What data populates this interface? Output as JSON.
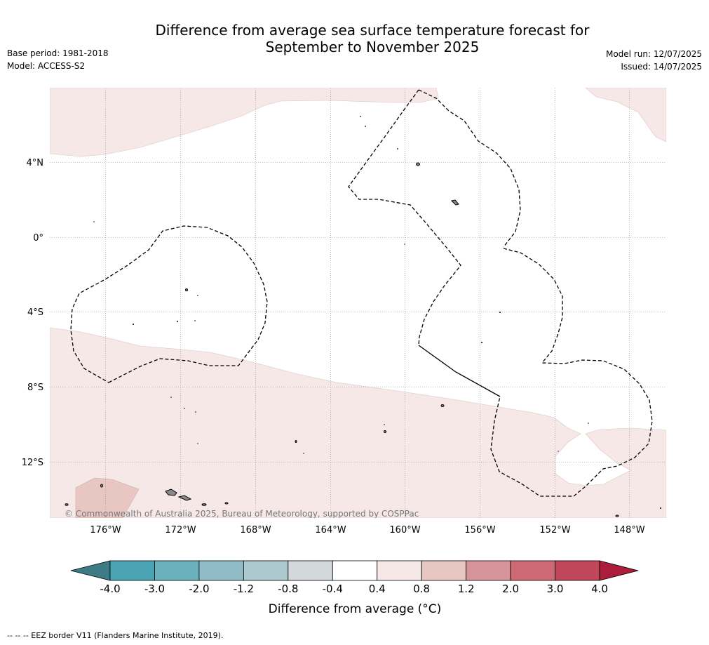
{
  "title_line1": "Difference from average sea surface temperature forecast for",
  "title_line2": "September to November 2025",
  "base_period": "Base period: 1981-2018",
  "model": "Model: ACCESS-S2",
  "model_run": "Model run: 12/07/2025",
  "issued": "Issued: 14/07/2025",
  "copyright": "© Commonwealth of Australia 2025, Bureau of Meteorology, supported by COSPPac",
  "lat_labels": [
    "4°N",
    "0°",
    "4°S",
    "8°S",
    "12°S"
  ],
  "lon_labels": [
    "176°W",
    "172°W",
    "168°W",
    "164°W",
    "160°W",
    "156°W",
    "152°W",
    "148°W"
  ],
  "colorbar": {
    "title": "Difference from average (°C)",
    "ticks": [
      "-4.0",
      "-3.0",
      "-2.0",
      "-1.2",
      "-0.8",
      "-0.4",
      "0.4",
      "0.8",
      "1.2",
      "2.0",
      "3.0",
      "4.0"
    ],
    "colors": [
      "#4ba4b4",
      "#6bb0bd",
      "#8fbcc6",
      "#abc9cf",
      "#d3d8db",
      "#ffffff",
      "#f5e8e7",
      "#e8c6c2",
      "#d6949a",
      "#cd6a75",
      "#c0475a"
    ],
    "under_color": "#3d7c85",
    "over_color": "#ac1d3c"
  },
  "legend_colors": {
    "anomaly_04_08": "#f5e8e7",
    "anomaly_08_12": "#e8c6c2",
    "land": "#8a8a8a",
    "eez_line": "#000000"
  },
  "footnote": "--  --  -- EEZ border V11 (Flanders Marine Institute, 2019)."
}
